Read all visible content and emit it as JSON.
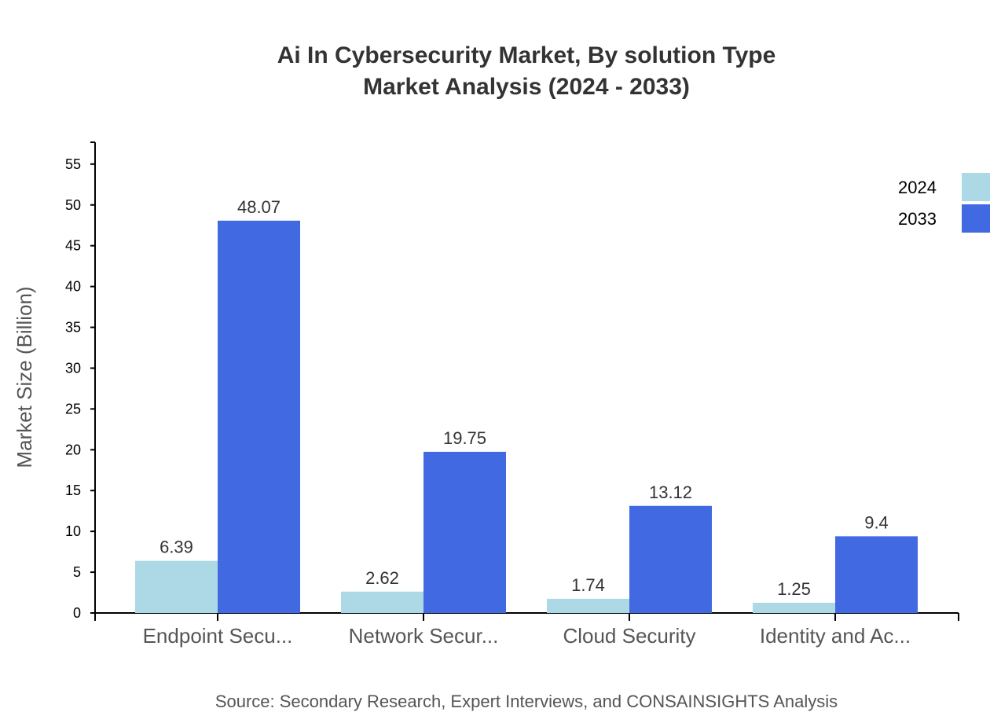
{
  "chart_data": {
    "type": "bar",
    "title": "Ai In Cybersecurity Market, By solution Type",
    "subtitle": "Market Analysis (2024 - 2033)",
    "ylabel": "Market Size (Billion)",
    "xlabel": "",
    "categories": [
      "Endpoint Secu...",
      "Network Secur...",
      "Cloud Security",
      "Identity and Ac..."
    ],
    "series": [
      {
        "name": "2024",
        "color": "#ADD8E6",
        "values": [
          6.39,
          2.62,
          1.74,
          1.25
        ]
      },
      {
        "name": "2033",
        "color": "#4169E1",
        "values": [
          48.07,
          19.75,
          13.12,
          9.4
        ]
      }
    ],
    "yticks": [
      0,
      5,
      10,
      15,
      20,
      25,
      30,
      35,
      40,
      45,
      50,
      55
    ],
    "ylim": [
      0,
      57.68
    ],
    "grid": false,
    "legend_position": "top-right",
    "source": "Source: Secondary Research, Expert Interviews, and CONSAINSIGHTS Analysis"
  }
}
